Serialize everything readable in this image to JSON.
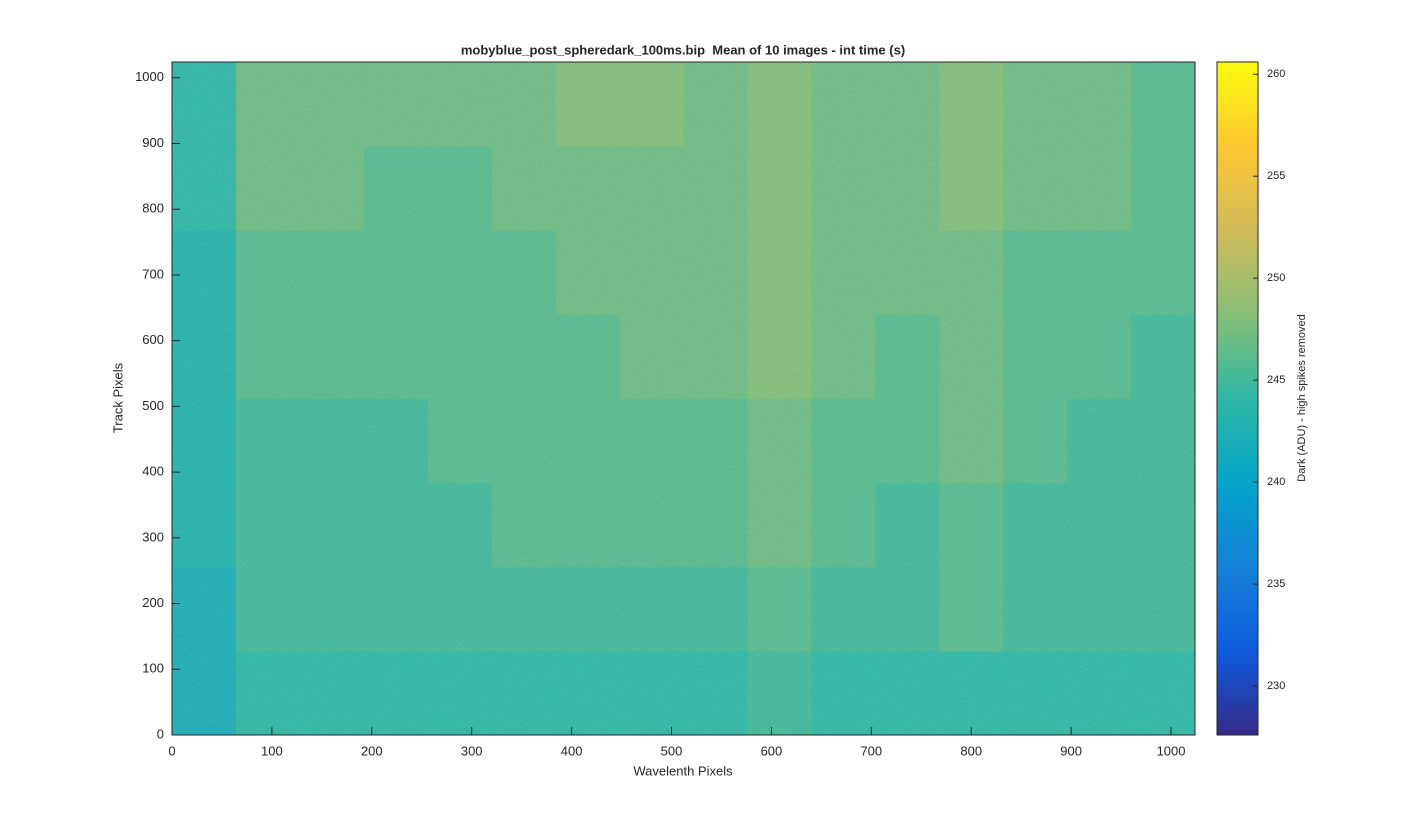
{
  "chart_data": {
    "type": "heatmap",
    "title": "mobyblue_post_spheredark_100ms.bip  Mean of 10 images - int time (s)",
    "x_label": "Wavelenth Pixels",
    "y_label": "Track Pixels",
    "colorbar_label": "Dark (ADU) - high spikes removed",
    "xlim": [
      0,
      1024
    ],
    "ylim": [
      0,
      1024
    ],
    "xticks": [
      0,
      100,
      200,
      300,
      400,
      500,
      600,
      700,
      800,
      900,
      1000
    ],
    "yticks": [
      0,
      100,
      200,
      300,
      400,
      500,
      600,
      700,
      800,
      900,
      1000
    ],
    "clim": [
      227.6,
      260.6
    ],
    "cticks": [
      230,
      235,
      240,
      245,
      250,
      255,
      260
    ],
    "colormap": [
      "#352a87",
      "#0f5cdd",
      "#1481d6",
      "#06a4ca",
      "#2eb7a4",
      "#87bf77",
      "#d1bb59",
      "#fec832",
      "#f9fb0e"
    ],
    "z": [
      [
        242,
        244,
        244,
        244,
        244,
        244,
        244,
        244,
        244,
        245,
        244,
        244,
        244,
        244,
        244,
        244
      ],
      [
        242,
        245,
        245,
        245,
        245,
        245,
        245,
        245,
        245,
        246,
        245,
        245,
        246,
        245,
        245,
        245
      ],
      [
        243,
        245,
        245,
        245,
        245,
        246,
        246,
        246,
        246,
        247,
        246,
        245,
        246,
        245,
        245,
        245
      ],
      [
        243,
        245,
        245,
        245,
        246,
        246,
        246,
        246,
        246,
        247,
        246,
        246,
        247,
        246,
        245,
        245
      ],
      [
        243,
        246,
        246,
        246,
        246,
        246,
        246,
        247,
        247,
        248,
        247,
        246,
        247,
        246,
        246,
        245
      ],
      [
        243,
        246,
        246,
        246,
        246,
        246,
        247,
        247,
        247,
        248,
        247,
        247,
        247,
        246,
        246,
        246
      ],
      [
        244,
        247,
        247,
        246,
        246,
        247,
        247,
        247,
        247,
        248,
        247,
        247,
        248,
        247,
        247,
        246
      ],
      [
        244,
        247,
        247,
        247,
        247,
        247,
        248,
        248,
        247,
        248,
        247,
        247,
        248,
        247,
        247,
        246
      ]
    ]
  }
}
